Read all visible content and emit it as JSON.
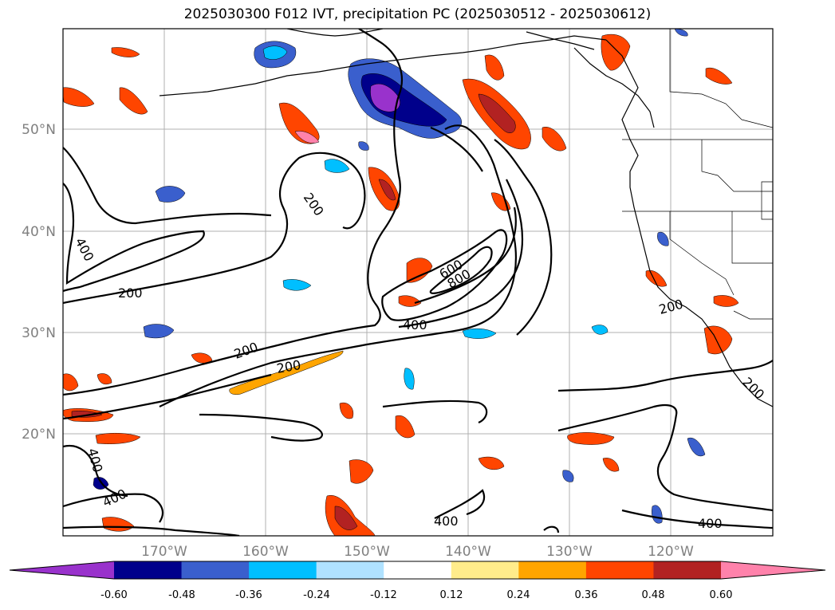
{
  "title": "2025030300 F012 IVT, precipitation PC (2025030512 - 2025030612)",
  "axes": {
    "lat_ticks": [
      "50°N",
      "40°N",
      "30°N",
      "20°N"
    ],
    "lon_ticks": [
      "170°W",
      "160°W",
      "150°W",
      "140°W",
      "130°W",
      "120°W"
    ]
  },
  "contour_labels": [
    "400",
    "200",
    "200",
    "400",
    "200",
    "200",
    "600",
    "800",
    "400",
    "200",
    "200",
    "400",
    "400",
    "400"
  ],
  "colorbar": {
    "ticks": [
      "-0.60",
      "-0.48",
      "-0.36",
      "-0.24",
      "-0.12",
      "0.12",
      "0.24",
      "0.36",
      "0.48",
      "0.60"
    ],
    "colors": [
      "#9932CC",
      "#00008B",
      "#3A5FCD",
      "#00BFFF",
      "#B0E2FF",
      "#FFFFFF",
      "#FFEC8B",
      "#FFA500",
      "#FF4500",
      "#B22222",
      "#FF82AB"
    ]
  },
  "colors": {
    "land_outline": "#000000",
    "grid": "#b0b0b0",
    "ivt_contour": "#000000"
  }
}
